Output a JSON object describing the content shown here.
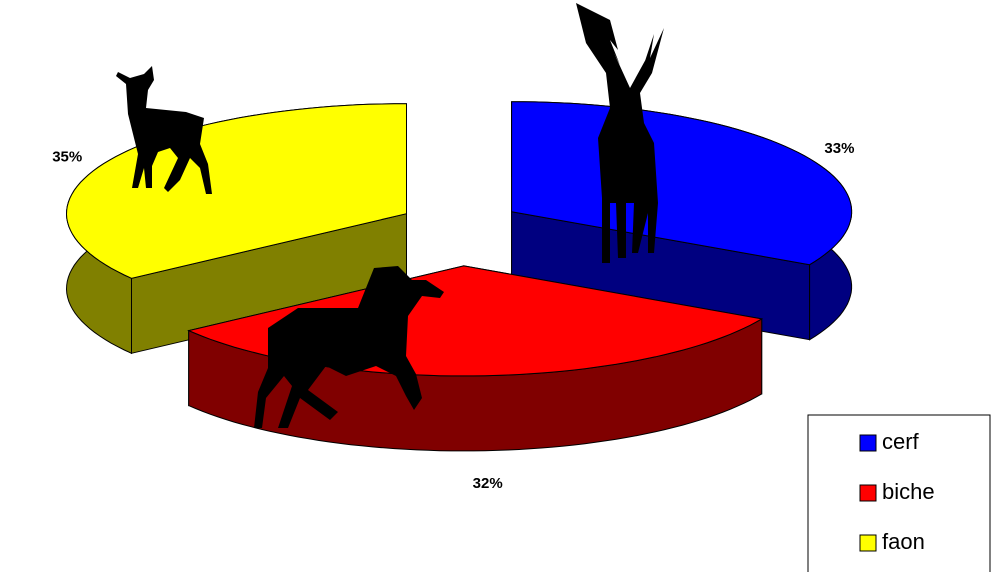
{
  "chart_data": {
    "type": "pie",
    "categories": [
      "cerf",
      "biche",
      "faon"
    ],
    "values": [
      33,
      32,
      35
    ],
    "value_labels": [
      "33%",
      "32%",
      "35%"
    ],
    "colors": [
      "#0000ff",
      "#ff0000",
      "#ffff00"
    ],
    "legend": "bottom-right"
  }
}
